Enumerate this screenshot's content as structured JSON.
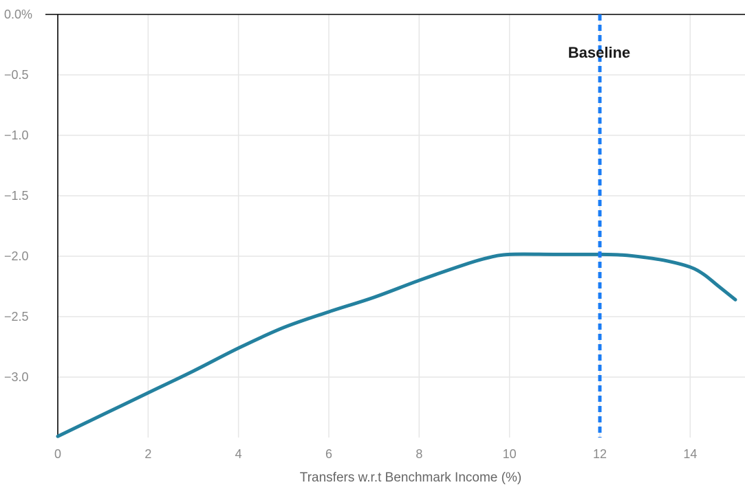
{
  "chart_data": {
    "type": "line",
    "xlabel": "Transfers w.r.t Benchmark Income (%)",
    "ylabel": "",
    "xlim": [
      0,
      15
    ],
    "ylim": [
      -3.5,
      0
    ],
    "x_ticks": [
      0,
      2,
      4,
      6,
      8,
      10,
      12,
      14
    ],
    "x_tick_labels": [
      "0",
      "2",
      "4",
      "6",
      "8",
      "10",
      "12",
      "14"
    ],
    "y_ticks": [
      0,
      -0.5,
      -1,
      -1.5,
      -2,
      -2.5,
      -3
    ],
    "y_tick_labels": [
      "0.0%",
      "−0.5",
      "−1.0",
      "−1.5",
      "−2.0",
      "−2.5",
      "−3.0"
    ],
    "grid": true,
    "series": [
      {
        "color": "#24819f",
        "x": [
          0,
          1,
          2,
          3,
          4,
          5,
          6,
          7,
          8,
          9,
          9.5,
          10,
          11,
          12,
          12.5,
          13,
          13.5,
          14,
          14.3,
          14.6,
          15
        ],
        "values": [
          -3.49,
          -3.31,
          -3.13,
          -2.95,
          -2.76,
          -2.59,
          -2.46,
          -2.34,
          -2.2,
          -2.07,
          -2.015,
          -1.985,
          -1.985,
          -1.985,
          -1.99,
          -2.01,
          -2.04,
          -2.09,
          -2.15,
          -2.24,
          -2.36
        ]
      }
    ],
    "reference_line": {
      "x": 12,
      "label": "Baseline",
      "color": "#1a7cf5",
      "style": "dashed"
    }
  }
}
